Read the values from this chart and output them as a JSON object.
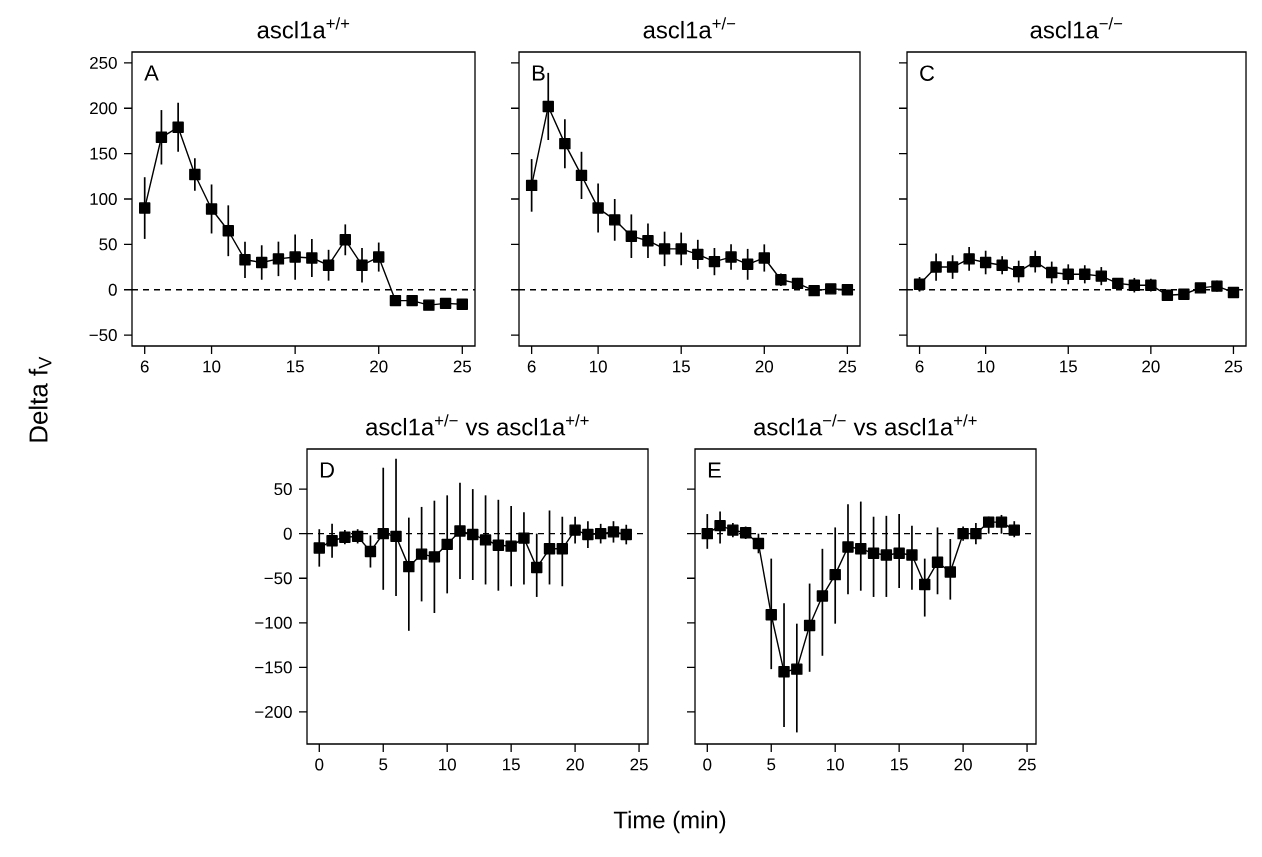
{
  "chart_data": [
    {
      "type": "line",
      "title": "ascl1a$^{+/+}$",
      "ylabel": "Delta f$_{V}$",
      "annotations": [
        "A"
      ],
      "color": "#000000",
      "marker": "square",
      "line_style": "solid",
      "x": [
        6,
        7,
        8,
        9,
        10,
        11,
        12,
        13,
        14,
        15,
        16,
        17,
        18,
        19,
        20,
        21,
        22,
        23,
        24,
        25
      ],
      "values": [
        90,
        168,
        179,
        127,
        89,
        65,
        33,
        30,
        34,
        36,
        35,
        27,
        55,
        27,
        36,
        -12,
        -12,
        -17,
        -15,
        -16
      ],
      "errors": [
        34,
        30,
        27,
        18,
        27,
        28,
        20,
        19,
        19,
        25,
        21,
        17,
        17,
        19,
        16,
        null,
        null,
        null,
        null,
        null
      ],
      "xlim": [
        5.24,
        25.76
      ],
      "ylim": [
        -62,
        262
      ],
      "xticks": [
        6,
        10,
        15,
        20,
        25
      ],
      "yticks": [
        {
          "value": -50,
          "label": "−50"
        },
        0,
        50,
        100,
        150,
        200,
        250
      ],
      "ref_lines": [
        {
          "axis": "y",
          "value": 0,
          "line_style": "dashed",
          "color": "#000000"
        }
      ]
    },
    {
      "type": "line",
      "title": "ascl1a$^{+/−}$",
      "annotations": [
        "B"
      ],
      "color": "#000000",
      "marker": "square",
      "line_style": "solid",
      "tick_labels": "x",
      "x": [
        6,
        7,
        8,
        9,
        10,
        11,
        12,
        13,
        14,
        15,
        16,
        17,
        18,
        19,
        20,
        21,
        22,
        23,
        24,
        25
      ],
      "values": [
        115,
        202,
        161,
        126,
        90,
        77,
        59,
        54,
        45,
        45,
        39,
        31,
        36,
        28,
        35,
        11,
        7,
        -1,
        1,
        0
      ],
      "errors": [
        29,
        37,
        27,
        26,
        27,
        23,
        24,
        19,
        19,
        18,
        16,
        15,
        14,
        17,
        15,
        7,
        6,
        null,
        null,
        null
      ],
      "xlim": [
        5.24,
        25.76
      ],
      "ylim": [
        -62,
        262
      ],
      "xticks": [
        6,
        10,
        15,
        20,
        25
      ],
      "yticks": [
        -50,
        0,
        50,
        100,
        150,
        200,
        250
      ],
      "ref_lines": [
        {
          "axis": "y",
          "value": 0,
          "line_style": "dashed",
          "color": "#000000"
        }
      ]
    },
    {
      "type": "line",
      "title": "ascl1a$^{−/−}$",
      "annotations": [
        "C"
      ],
      "color": "#000000",
      "marker": "square",
      "line_style": "solid",
      "tick_labels": "x",
      "x": [
        6,
        7,
        8,
        9,
        10,
        11,
        12,
        13,
        14,
        15,
        16,
        17,
        18,
        19,
        20,
        21,
        22,
        23,
        24,
        25
      ],
      "values": [
        6,
        25,
        25,
        34,
        30,
        27,
        20,
        31,
        19,
        17,
        17,
        15,
        7,
        5,
        5,
        -6,
        -5,
        2,
        4,
        -3
      ],
      "errors": [
        8,
        15,
        13,
        13,
        13,
        10,
        12,
        12,
        12,
        11,
        10,
        10,
        4,
        8,
        7,
        null,
        null,
        3,
        6,
        null
      ],
      "xlim": [
        5.24,
        25.76
      ],
      "ylim": [
        -62,
        262
      ],
      "xticks": [
        6,
        10,
        15,
        20,
        25
      ],
      "yticks": [
        -50,
        0,
        50,
        100,
        150,
        200,
        250
      ],
      "ref_lines": [
        {
          "axis": "y",
          "value": 0,
          "line_style": "dashed",
          "color": "#000000"
        }
      ]
    },
    {
      "type": "line",
      "title": "ascl1a$^{+/−}$ vs ascl1a$^{+/+}$",
      "xlabel": "Time (min)",
      "annotations": [
        "D"
      ],
      "color": "#000000",
      "marker": "square",
      "line_style": "solid",
      "x": [
        0,
        1,
        2,
        3,
        4,
        5,
        6,
        7,
        8,
        9,
        10,
        11,
        12,
        13,
        14,
        15,
        16,
        17,
        18,
        19,
        20,
        21,
        22,
        23,
        24
      ],
      "values": [
        -16,
        -8,
        -4,
        -3,
        -20,
        0,
        -3,
        -37,
        -23,
        -26,
        -12,
        3,
        -1,
        -7,
        -13,
        -14,
        -5,
        -38,
        -17,
        -17,
        4,
        -1,
        0,
        2,
        -1
      ],
      "errors": [
        21,
        19,
        8,
        8,
        18,
        [
          -63,
          74
        ],
        [
          -70,
          84
        ],
        [
          -109,
          18
        ],
        53,
        63,
        55,
        54,
        51,
        50,
        51,
        45,
        [
          -57,
          24
        ],
        [
          -71,
          0
        ],
        [
          -57,
          26
        ],
        [
          -59,
          19
        ],
        15,
        15,
        11,
        12,
        11
      ],
      "xlim": [
        -0.96,
        25.7
      ],
      "ylim": [
        -236,
        95
      ],
      "xticks": [
        0,
        5,
        10,
        15,
        20,
        25
      ],
      "yticks": [
        {
          "value": -200,
          "label": "−200"
        },
        {
          "value": -150,
          "label": "−150"
        },
        {
          "value": -100,
          "label": "−100"
        },
        {
          "value": -50,
          "label": "−50"
        },
        0,
        50
      ],
      "ref_lines": [
        {
          "axis": "y",
          "value": 0,
          "line_style": "dashed",
          "color": "#000000"
        }
      ]
    },
    {
      "type": "line",
      "title": "ascl1a$^{−/−}$ vs ascl1a$^{+/+}$",
      "annotations": [
        "E"
      ],
      "color": "#000000",
      "marker": "square",
      "line_style": "solid",
      "tick_labels": "x",
      "x": [
        0,
        1,
        2,
        3,
        4,
        5,
        6,
        7,
        8,
        9,
        10,
        11,
        12,
        13,
        14,
        15,
        16,
        17,
        18,
        19,
        20,
        21,
        22,
        23,
        24
      ],
      "values": [
        0,
        9,
        4,
        1,
        -11,
        -91,
        -155,
        -152,
        -103,
        -70,
        -46,
        -15,
        -17,
        -22,
        -24,
        -22,
        -24,
        -57,
        -32,
        -43,
        0,
        0,
        13,
        13,
        4
      ],
      "errors": [
        [
          -17,
          22
        ],
        [
          -11,
          25
        ],
        8,
        7,
        11,
        [
          -152,
          -28
        ],
        [
          -217,
          -78
        ],
        [
          -223,
          -101
        ],
        [
          -155,
          -56
        ],
        [
          -137,
          -17
        ],
        [
          -101,
          7
        ],
        [
          -68,
          33
        ],
        [
          -64,
          36
        ],
        [
          -71,
          19
        ],
        [
          -71,
          20
        ],
        [
          -61,
          22
        ],
        [
          -63,
          9
        ],
        [
          -93,
          -28
        ],
        [
          -68,
          7
        ],
        [
          -74,
          -6
        ],
        8,
        12,
        [
          0,
          19
        ],
        [
          0,
          21
        ],
        [
          -4,
          14
        ]
      ],
      "xlim": [
        -0.96,
        25.7
      ],
      "ylim": [
        -236,
        95
      ],
      "xticks": [
        0,
        5,
        10,
        15,
        20,
        25
      ],
      "yticks": [
        -200,
        -150,
        -100,
        -50,
        0,
        50
      ],
      "ref_lines": [
        {
          "axis": "y",
          "value": 0,
          "line_style": "dashed",
          "color": "#000000"
        }
      ]
    }
  ]
}
